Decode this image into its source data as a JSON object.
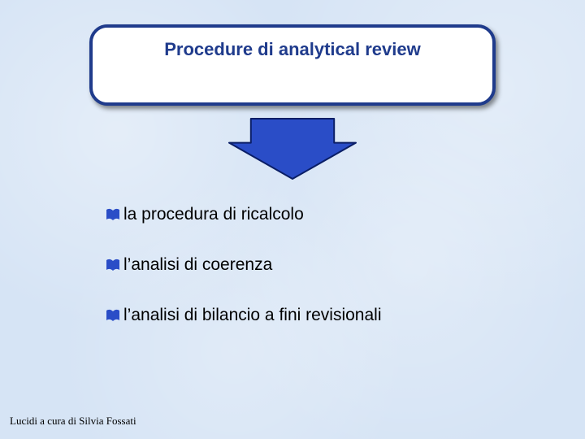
{
  "slide": {
    "background_color": "#d6e4f5",
    "title": {
      "text": "Procedure di analytical review",
      "color": "#1f3b8c",
      "fontsize": 22,
      "box_bg": "#ffffff",
      "box_border_color": "#1f3b8c",
      "box_border_width": 4,
      "box_radius": 22
    },
    "arrow": {
      "fill": "#2a4dc7",
      "stroke": "#0a1e66",
      "stroke_width": 2,
      "width": 160,
      "height": 78
    },
    "bullets": {
      "icon_color": "#2a4dc7",
      "text_color": "#000000",
      "fontsize": 21,
      "items": [
        {
          "text": "la procedura di ricalcolo"
        },
        {
          "text": "l’analisi di coerenza"
        },
        {
          "text": "l’analisi di bilancio a fini revisionali"
        }
      ]
    },
    "footer": {
      "text": "Lucidi a cura di Silvia Fossati",
      "color": "#000000",
      "fontsize": 13
    }
  }
}
